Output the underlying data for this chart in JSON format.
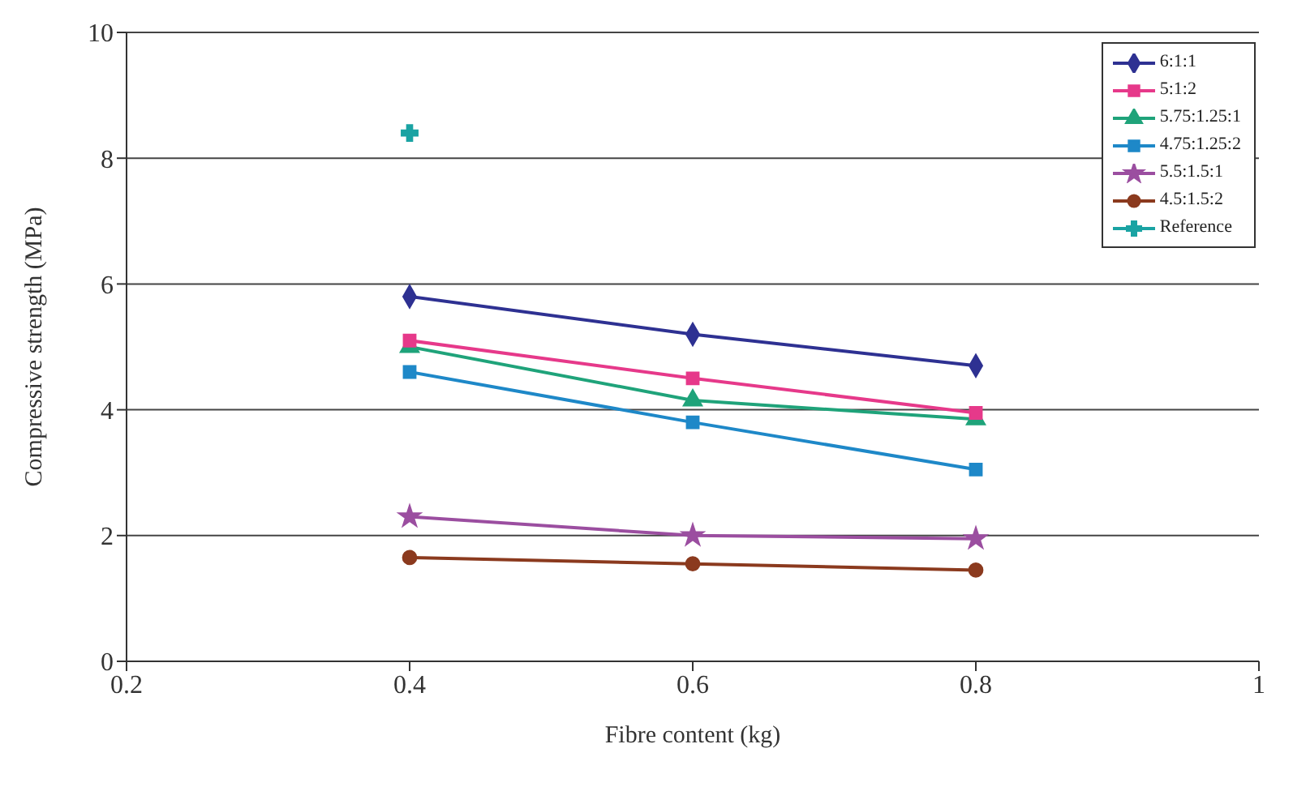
{
  "chart_data": {
    "type": "line",
    "xlabel": "Fibre content (kg)",
    "ylabel": "Compressive strength (MPa)",
    "x": [
      0.4,
      0.6,
      0.8
    ],
    "xlim": [
      0.2,
      1
    ],
    "xticks": [
      0.2,
      0.4,
      0.6,
      0.8,
      1
    ],
    "ylim": [
      0,
      10
    ],
    "yticks": [
      0,
      2,
      4,
      6,
      8,
      10
    ],
    "grid": "y",
    "legend": "top right",
    "series": [
      {
        "name": "6:1:1",
        "color": "#2e3192",
        "marker": "diamond",
        "values": [
          5.8,
          5.2,
          4.7
        ]
      },
      {
        "name": "5:1:2",
        "color": "#e6398a",
        "marker": "square",
        "values": [
          5.1,
          4.5,
          3.95
        ]
      },
      {
        "name": "5.75:1.25:1",
        "color": "#1fa37a",
        "marker": "triangle",
        "values": [
          5.0,
          4.15,
          3.85
        ]
      },
      {
        "name": "4.75:1.25:2",
        "color": "#1e88c8",
        "marker": "square",
        "values": [
          4.6,
          3.8,
          3.05
        ]
      },
      {
        "name": "5.5:1.5:1",
        "color": "#9b4ea0",
        "marker": "star",
        "values": [
          2.3,
          2.0,
          1.95
        ]
      },
      {
        "name": "4.5:1.5:2",
        "color": "#8b3a1e",
        "marker": "circle",
        "values": [
          1.65,
          1.55,
          1.45
        ]
      },
      {
        "name": "Reference",
        "color": "#1aa3a3",
        "marker": "cross",
        "values": [
          8.4,
          null,
          null
        ]
      }
    ]
  }
}
